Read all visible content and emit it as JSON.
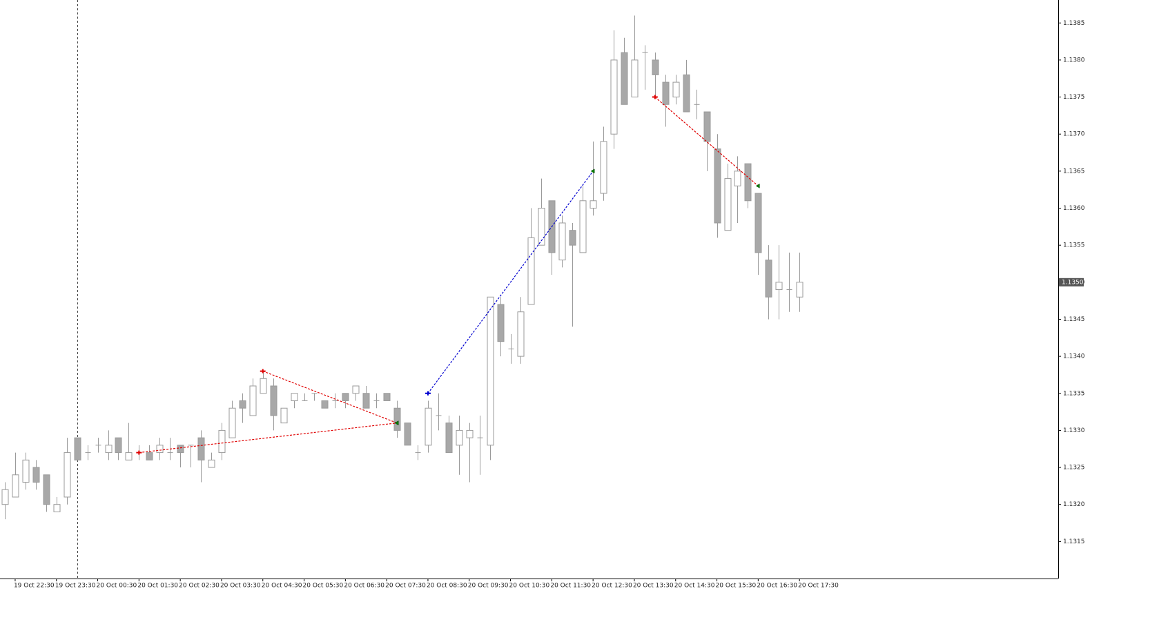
{
  "chart_data": {
    "type": "candlestick",
    "categories": [
      null,
      "19 Oct 22:30",
      null,
      null,
      null,
      "19 Oct 23:30",
      null,
      null,
      null,
      "20 Oct 00:30",
      null,
      null,
      null,
      "20 Oct 01:30",
      null,
      null,
      null,
      "20 Oct 02:30",
      null,
      null,
      null,
      "20 Oct 03:30",
      null,
      null,
      null,
      "20 Oct 04:30",
      null,
      null,
      null,
      "20 Oct 05:30",
      null,
      null,
      null,
      "20 Oct 06:30",
      null,
      null,
      null,
      "20 Oct 07:30",
      null,
      null,
      null,
      "20 Oct 08:30",
      null,
      null,
      null,
      "20 Oct 09:30",
      null,
      null,
      null,
      "20 Oct 10:30",
      null,
      null,
      null,
      "20 Oct 11:30",
      null,
      null,
      null,
      "20 Oct 12:30",
      null,
      null,
      null,
      "20 Oct 13:30",
      null,
      null,
      null,
      "20 Oct 14:30",
      null,
      null,
      null,
      "20 Oct 15:30",
      null,
      null,
      null,
      "20 Oct 16:30",
      null,
      null,
      null,
      "20 Oct 17:30"
    ],
    "series": {
      "bull_color": "#ffffff",
      "bear_color": "#a8a8a8",
      "outline_color": "#9a9a9a",
      "open": [
        1.132,
        1.1321,
        1.1323,
        1.1325,
        1.1324,
        1.1319,
        1.1321,
        1.1329,
        1.1327,
        1.1328,
        1.1327,
        1.1329,
        1.1326,
        1.1327,
        1.1327,
        1.1327,
        1.1327,
        1.1328,
        1.1328,
        1.1329,
        1.1325,
        1.1327,
        1.1329,
        1.1334,
        1.1332,
        1.1335,
        1.1336,
        1.1331,
        1.1334,
        1.1334,
        1.1335,
        1.1334,
        1.1334,
        1.1335,
        1.1335,
        1.1335,
        1.1334,
        1.1335,
        1.1333,
        1.1331,
        1.1327,
        1.1328,
        1.1332,
        1.1331,
        1.1328,
        1.1329,
        1.1329,
        1.1328,
        1.1347,
        1.1341,
        1.134,
        1.1347,
        1.1355,
        1.1361,
        1.1353,
        1.1357,
        1.1354,
        1.136,
        1.1362,
        1.137,
        1.1381,
        1.1375,
        1.1381,
        1.138,
        1.1377,
        1.1375,
        1.1378,
        1.1374,
        1.1373,
        1.1368,
        1.1357,
        1.1363,
        1.1366,
        1.1362,
        1.1353,
        1.1349,
        1.1349,
        1.1348
      ],
      "high": [
        1.1323,
        1.1327,
        1.1327,
        1.1326,
        1.1324,
        1.1321,
        1.1329,
        1.1329,
        1.1328,
        1.1329,
        1.133,
        1.1329,
        1.1331,
        1.1328,
        1.1328,
        1.1329,
        1.1329,
        1.1328,
        1.1328,
        1.133,
        1.1327,
        1.1331,
        1.1334,
        1.1335,
        1.1337,
        1.1338,
        1.1337,
        1.1333,
        1.1335,
        1.1335,
        1.1335,
        1.1334,
        1.1335,
        1.1335,
        1.1336,
        1.1336,
        1.1335,
        1.1335,
        1.1334,
        1.1331,
        1.1328,
        1.1334,
        1.1335,
        1.1332,
        1.1332,
        1.1331,
        1.1332,
        1.1348,
        1.1348,
        1.1343,
        1.1348,
        1.136,
        1.1364,
        1.1361,
        1.1359,
        1.1358,
        1.1363,
        1.1369,
        1.1371,
        1.1384,
        1.1383,
        1.1386,
        1.1382,
        1.1381,
        1.1378,
        1.1378,
        1.138,
        1.1376,
        1.1373,
        1.137,
        1.1366,
        1.1367,
        1.1366,
        1.1362,
        1.1355,
        1.1355,
        1.1354,
        1.1354
      ],
      "low": [
        1.1318,
        1.1321,
        1.1322,
        1.1322,
        1.1319,
        1.1319,
        1.132,
        1.1326,
        1.1326,
        1.1327,
        1.1326,
        1.1326,
        1.1326,
        1.1326,
        1.1326,
        1.1326,
        1.1326,
        1.1325,
        1.1325,
        1.1323,
        1.1325,
        1.1326,
        1.1329,
        1.1331,
        1.1332,
        1.1335,
        1.133,
        1.1331,
        1.1333,
        1.1334,
        1.1334,
        1.1333,
        1.1333,
        1.1333,
        1.1334,
        1.1333,
        1.1333,
        1.1334,
        1.1329,
        1.1328,
        1.1326,
        1.1327,
        1.133,
        1.1327,
        1.1324,
        1.1323,
        1.1324,
        1.1326,
        1.134,
        1.1339,
        1.1339,
        1.1347,
        1.1355,
        1.1351,
        1.1352,
        1.1344,
        1.1354,
        1.1359,
        1.1361,
        1.1368,
        1.1374,
        1.1375,
        1.1376,
        1.1375,
        1.1371,
        1.1374,
        1.1373,
        1.1372,
        1.1365,
        1.1356,
        1.1357,
        1.1358,
        1.136,
        1.1351,
        1.1345,
        1.1345,
        1.1346,
        1.1346
      ],
      "close": [
        1.1322,
        1.1324,
        1.1326,
        1.1323,
        1.132,
        1.132,
        1.1327,
        1.1326,
        1.1327,
        1.1328,
        1.1328,
        1.1327,
        1.1327,
        1.1327,
        1.1326,
        1.1328,
        1.1327,
        1.1327,
        1.1328,
        1.1326,
        1.1326,
        1.133,
        1.1333,
        1.1333,
        1.1336,
        1.1337,
        1.1332,
        1.1333,
        1.1335,
        1.1334,
        1.1335,
        1.1333,
        1.1334,
        1.1334,
        1.1336,
        1.1333,
        1.1334,
        1.1334,
        1.133,
        1.1328,
        1.1327,
        1.1333,
        1.1332,
        1.1327,
        1.133,
        1.133,
        1.1329,
        1.1348,
        1.1342,
        1.1341,
        1.1346,
        1.1356,
        1.136,
        1.1354,
        1.1358,
        1.1355,
        1.1361,
        1.1361,
        1.1369,
        1.138,
        1.1374,
        1.138,
        1.1381,
        1.1378,
        1.1374,
        1.1377,
        1.1373,
        1.1374,
        1.1369,
        1.1358,
        1.1364,
        1.1365,
        1.1361,
        1.1354,
        1.1348,
        1.135,
        1.1349,
        1.135
      ]
    },
    "trades": [
      {
        "color": "#e00000",
        "open": {
          "index": 13,
          "price": 1.1327
        },
        "close": {
          "index": 38,
          "price": 1.1331
        }
      },
      {
        "color": "#e00000",
        "open": {
          "index": 25,
          "price": 1.1338
        },
        "close": {
          "index": 38,
          "price": 1.1331
        }
      },
      {
        "color": "#0000d0",
        "open": {
          "index": 41,
          "price": 1.1335
        },
        "close": {
          "index": 57,
          "price": 1.1365
        }
      },
      {
        "color": "#e00000",
        "open": {
          "index": 63,
          "price": 1.1375
        },
        "close": {
          "index": 73,
          "price": 1.1363
        }
      }
    ],
    "period_separator_index": 7,
    "current_price": {
      "value": 1.135,
      "label": "1.1350"
    },
    "ylim": [
      1.131,
      1.13881
    ],
    "yticks": [
      1.1315,
      {
        "value": 1.132,
        "label": "1.1320"
      },
      1.1325,
      {
        "value": 1.133,
        "label": "1.1330"
      },
      1.1335,
      {
        "value": 1.134,
        "label": "1.1340"
      },
      1.1345,
      {
        "value": 1.135,
        "label": "1.1350"
      },
      1.1355,
      {
        "value": 1.136,
        "label": "1.1360"
      },
      1.1365,
      {
        "value": 1.137,
        "label": "1.1370"
      },
      1.1375,
      {
        "value": 1.138,
        "label": "1.1380"
      },
      1.1385
    ]
  }
}
